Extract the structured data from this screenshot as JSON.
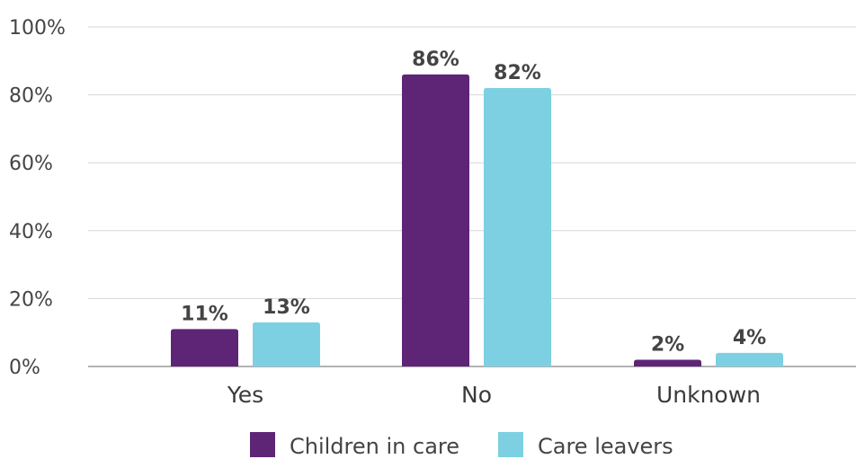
{
  "chart_data": {
    "type": "bar",
    "categories": [
      "Yes",
      "No",
      "Unknown"
    ],
    "series": [
      {
        "name": "Children in care",
        "values": [
          11,
          86,
          2
        ],
        "color": "#5e2577"
      },
      {
        "name": "Care leavers",
        "values": [
          13,
          82,
          4
        ],
        "color": "#7dd0e2"
      }
    ],
    "data_labels": [
      [
        "11%",
        "86%",
        "2%"
      ],
      [
        "13%",
        "82%",
        "4%"
      ]
    ],
    "y_ticks": [
      "0%",
      "20%",
      "40%",
      "60%",
      "80%",
      "100%"
    ],
    "ylim": [
      0,
      100
    ],
    "grid": true,
    "legend_position": "bottom-center",
    "title": "",
    "xlabel": "",
    "ylabel": ""
  }
}
